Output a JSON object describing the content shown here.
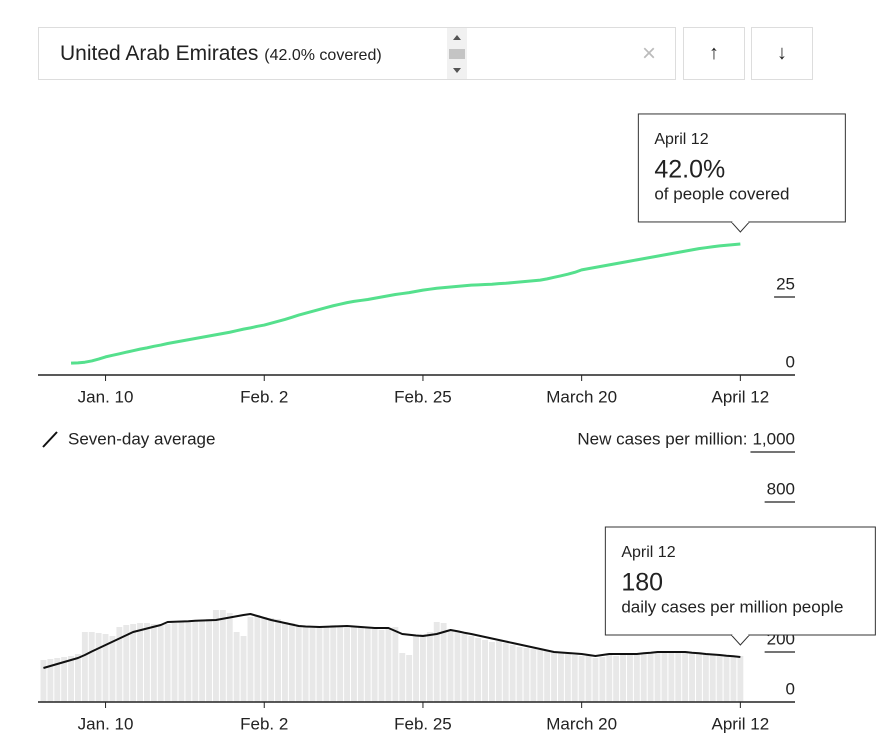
{
  "selector": {
    "country": "United Arab Emirates",
    "coverage": "(42.0% covered)"
  },
  "chart_data": [
    {
      "type": "line",
      "categories": [
        null,
        null,
        null,
        null,
        null,
        null,
        null,
        null,
        null,
        "Jan. 10",
        null,
        null,
        null,
        null,
        null,
        null,
        null,
        null,
        null,
        null,
        null,
        null,
        null,
        null,
        null,
        null,
        null,
        null,
        null,
        null,
        null,
        null,
        "Feb. 2",
        null,
        null,
        null,
        null,
        null,
        null,
        null,
        null,
        null,
        null,
        null,
        null,
        null,
        null,
        null,
        null,
        null,
        null,
        null,
        null,
        null,
        null,
        "Feb. 25",
        null,
        null,
        null,
        null,
        null,
        null,
        null,
        null,
        null,
        null,
        null,
        null,
        null,
        null,
        null,
        null,
        null,
        null,
        null,
        null,
        null,
        null,
        "March 20",
        null,
        null,
        null,
        null,
        null,
        null,
        null,
        null,
        null,
        null,
        null,
        null,
        null,
        null,
        null,
        null,
        null,
        null,
        null,
        null,
        null,
        null,
        "April 12"
      ],
      "series": [
        {
          "type": "line",
          "color": "#55e08d",
          "values": [
            null,
            null,
            null,
            null,
            3.8,
            3.9,
            4.1,
            4.5,
            5.1,
            5.8,
            6.3,
            6.8,
            7.3,
            7.8,
            8.3,
            8.7,
            9.2,
            9.6,
            10.1,
            10.5,
            10.9,
            11.3,
            11.7,
            12.1,
            12.5,
            12.9,
            13.3,
            13.7,
            14.2,
            14.7,
            15.1,
            15.6,
            16.0,
            16.6,
            17.2,
            17.8,
            18.5,
            19.2,
            19.8,
            20.4,
            21.0,
            21.6,
            22.2,
            22.7,
            23.2,
            23.6,
            23.9,
            24.2,
            24.6,
            25.0,
            25.4,
            25.8,
            26.1,
            26.4,
            26.8,
            27.2,
            27.5,
            27.8,
            28.0,
            28.2,
            28.4,
            28.6,
            28.8,
            28.9,
            29.0,
            29.1,
            29.3,
            29.4,
            29.6,
            29.8,
            30.0,
            30.2,
            30.4,
            30.8,
            31.3,
            31.8,
            32.3,
            32.9,
            33.7,
            34.1,
            34.5,
            34.9,
            35.3,
            35.7,
            36.1,
            36.5,
            36.9,
            37.3,
            37.7,
            38.1,
            38.5,
            38.9,
            39.3,
            39.7,
            40.1,
            40.5,
            40.8,
            41.1,
            41.4,
            41.6,
            41.8,
            42.0
          ]
        }
      ],
      "ylim": [
        0,
        50
      ],
      "yticks": [
        0,
        25
      ],
      "grid": true,
      "tooltip": {
        "date": "April 12",
        "value": 42.0,
        "value_label": "42.0%",
        "text": "of people covered"
      }
    },
    {
      "type": "bar",
      "categories": [
        null,
        null,
        null,
        null,
        null,
        null,
        null,
        null,
        null,
        "Jan. 10",
        null,
        null,
        null,
        null,
        null,
        null,
        null,
        null,
        null,
        null,
        null,
        null,
        null,
        null,
        null,
        null,
        null,
        null,
        null,
        null,
        null,
        null,
        "Feb. 2",
        null,
        null,
        null,
        null,
        null,
        null,
        null,
        null,
        null,
        null,
        null,
        null,
        null,
        null,
        null,
        null,
        null,
        null,
        null,
        null,
        null,
        null,
        "Feb. 25",
        null,
        null,
        null,
        null,
        null,
        null,
        null,
        null,
        null,
        null,
        null,
        null,
        null,
        null,
        null,
        null,
        null,
        null,
        null,
        null,
        null,
        null,
        "March 20",
        null,
        null,
        null,
        null,
        null,
        null,
        null,
        null,
        null,
        null,
        null,
        null,
        null,
        null,
        null,
        null,
        null,
        null,
        null,
        null,
        null,
        null,
        "April 12"
      ],
      "y_label": "New cases per million:",
      "series": [
        {
          "type": "bar",
          "color": "#e8e8e8",
          "values": [
            168,
            172,
            176,
            180,
            184,
            192,
            280,
            280,
            276,
            272,
            264,
            300,
            308,
            312,
            316,
            316,
            312,
            308,
            312,
            316,
            320,
            320,
            324,
            328,
            332,
            368,
            368,
            356,
            280,
            264,
            340,
            348,
            340,
            336,
            332,
            320,
            316,
            308,
            300,
            296,
            300,
            304,
            308,
            300,
            296,
            304,
            300,
            296,
            292,
            288,
            296,
            300,
            196,
            188,
            264,
            272,
            280,
            320,
            316,
            288,
            280,
            272,
            264,
            256,
            248,
            240,
            244,
            236,
            228,
            220,
            216,
            212,
            208,
            204,
            200,
            196,
            192,
            188,
            184,
            188,
            176,
            180,
            188,
            184,
            192,
            188,
            196,
            192,
            200,
            196,
            204,
            200,
            196,
            204,
            196,
            200,
            192,
            188,
            184,
            188,
            180,
            184
          ]
        },
        {
          "type": "line",
          "name": "Seven-day average",
          "color": "#111111",
          "values": [
            136,
            144,
            152,
            160,
            168,
            176,
            188,
            202,
            215,
            228,
            241,
            254,
            267,
            280,
            287,
            294,
            301,
            308,
            320,
            321,
            322,
            323,
            325,
            326,
            327,
            328,
            333,
            338,
            343,
            348,
            352,
            344,
            336,
            328,
            322,
            316,
            310,
            304,
            302,
            301,
            300,
            301,
            302,
            303,
            304,
            302,
            300,
            298,
            296,
            296,
            296,
            284,
            272,
            269,
            266,
            264,
            268,
            272,
            280,
            288,
            283,
            277,
            272,
            266,
            260,
            254,
            248,
            242,
            236,
            230,
            224,
            218,
            212,
            206,
            200,
            198,
            196,
            194,
            192,
            188,
            184,
            188,
            192,
            192,
            192,
            192,
            192,
            195,
            197,
            200,
            200,
            200,
            200,
            200,
            197,
            195,
            192,
            190,
            188,
            185,
            183,
            180
          ]
        }
      ],
      "ylim": [
        0,
        1000
      ],
      "yticks": [
        0,
        200,
        800,
        {
          "value": 1000,
          "label": "1,000"
        }
      ],
      "grid": true,
      "tooltip": {
        "date": "April 12",
        "value": 180,
        "text": "daily cases per million people"
      }
    }
  ]
}
